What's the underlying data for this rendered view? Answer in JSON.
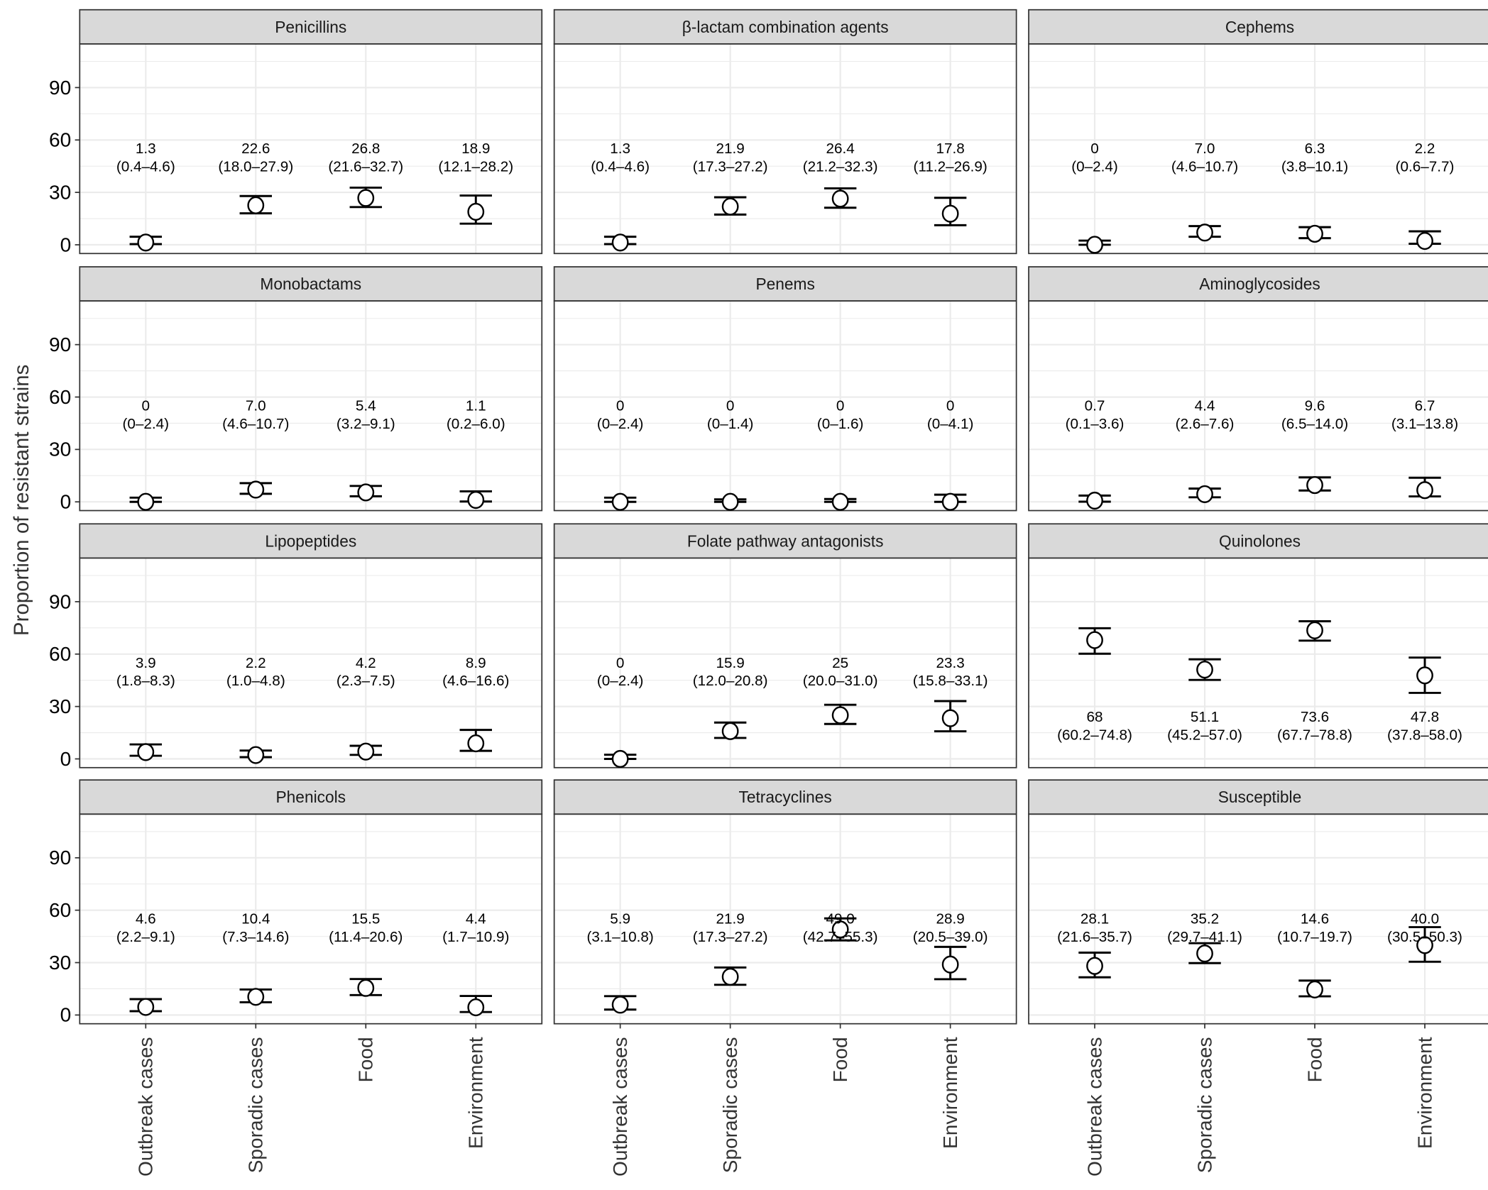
{
  "chart_data": {
    "type": "scatter",
    "subtype": "point-with-errorbars-faceted",
    "ylabel": "Proportion of resistant strains",
    "xlabel": "",
    "categories": [
      "Outbreak cases",
      "Sporadic cases",
      "Food",
      "Environment"
    ],
    "yticks": [
      0,
      30,
      60,
      90
    ],
    "ylim": [
      -5,
      115
    ],
    "grid": true,
    "panels": [
      {
        "title": "Penicillins",
        "est": [
          1.3,
          22.6,
          26.8,
          18.9
        ],
        "lo": [
          0.4,
          18.0,
          21.6,
          12.1
        ],
        "hi": [
          4.6,
          27.9,
          32.7,
          28.2
        ],
        "labels": [
          "1.3",
          "22.6",
          "26.8",
          "18.9"
        ],
        "ci": [
          "(0.4–4.6)",
          "(18.0–27.9)",
          "(21.6–32.7)",
          "(12.1–28.2)"
        ]
      },
      {
        "title": "β-lactam combination agents",
        "est": [
          1.3,
          21.9,
          26.4,
          17.8
        ],
        "lo": [
          0.4,
          17.3,
          21.2,
          11.2
        ],
        "hi": [
          4.6,
          27.2,
          32.3,
          26.9
        ],
        "labels": [
          "1.3",
          "21.9",
          "26.4",
          "17.8"
        ],
        "ci": [
          "(0.4–4.6)",
          "(17.3–27.2)",
          "(21.2–32.3)",
          "(11.2–26.9)"
        ]
      },
      {
        "title": "Cephems",
        "est": [
          0,
          7.0,
          6.3,
          2.2
        ],
        "lo": [
          0,
          4.6,
          3.8,
          0.6
        ],
        "hi": [
          2.4,
          10.7,
          10.1,
          7.7
        ],
        "labels": [
          "0",
          "7.0",
          "6.3",
          "2.2"
        ],
        "ci": [
          "(0–2.4)",
          "(4.6–10.7)",
          "(3.8–10.1)",
          "(0.6–7.7)"
        ]
      },
      {
        "title": "Monobactams",
        "est": [
          0,
          7.0,
          5.4,
          1.1
        ],
        "lo": [
          0,
          4.6,
          3.2,
          0.2
        ],
        "hi": [
          2.4,
          10.7,
          9.1,
          6.0
        ],
        "labels": [
          "0",
          "7.0",
          "5.4",
          "1.1"
        ],
        "ci": [
          "(0–2.4)",
          "(4.6–10.7)",
          "(3.2–9.1)",
          "(0.2–6.0)"
        ]
      },
      {
        "title": "Penems",
        "est": [
          0,
          0,
          0,
          0
        ],
        "lo": [
          0,
          0,
          0,
          0
        ],
        "hi": [
          2.4,
          1.4,
          1.6,
          4.1
        ],
        "labels": [
          "0",
          "0",
          "0",
          "0"
        ],
        "ci": [
          "(0–2.4)",
          "(0–1.4)",
          "(0–1.6)",
          "(0–4.1)"
        ]
      },
      {
        "title": "Aminoglycosides",
        "est": [
          0.7,
          4.4,
          9.6,
          6.7
        ],
        "lo": [
          0.1,
          2.6,
          6.5,
          3.1
        ],
        "hi": [
          3.6,
          7.6,
          14.0,
          13.8
        ],
        "labels": [
          "0.7",
          "4.4",
          "9.6",
          "6.7"
        ],
        "ci": [
          "(0.1–3.6)",
          "(2.6–7.6)",
          "(6.5–14.0)",
          "(3.1–13.8)"
        ]
      },
      {
        "title": "Lipopeptides",
        "est": [
          3.9,
          2.2,
          4.2,
          8.9
        ],
        "lo": [
          1.8,
          1.0,
          2.3,
          4.6
        ],
        "hi": [
          8.3,
          4.8,
          7.5,
          16.6
        ],
        "labels": [
          "3.9",
          "2.2",
          "4.2",
          "8.9"
        ],
        "ci": [
          "(1.8–8.3)",
          "(1.0–4.8)",
          "(2.3–7.5)",
          "(4.6–16.6)"
        ]
      },
      {
        "title": "Folate pathway antagonists",
        "est": [
          0,
          15.9,
          25,
          23.3
        ],
        "lo": [
          0,
          12.0,
          20.0,
          15.8
        ],
        "hi": [
          2.4,
          20.8,
          31.0,
          33.1
        ],
        "labels": [
          "0",
          "15.9",
          "25",
          "23.3"
        ],
        "ci": [
          "(0–2.4)",
          "(12.0–20.8)",
          "(20.0–31.0)",
          "(15.8–33.1)"
        ]
      },
      {
        "title": "Quinolones",
        "est": [
          68,
          51.1,
          73.6,
          47.8
        ],
        "lo": [
          60.2,
          45.2,
          67.7,
          37.8
        ],
        "hi": [
          74.8,
          57.0,
          78.8,
          58.0
        ],
        "labels": [
          "68",
          "51.1",
          "73.6",
          "47.8"
        ],
        "ci": [
          "(60.2–74.8)",
          "(45.2–57.0)",
          "(67.7–78.8)",
          "(37.8–58.0)"
        ],
        "label_position": "below"
      },
      {
        "title": "Phenicols",
        "est": [
          4.6,
          10.4,
          15.5,
          4.4
        ],
        "lo": [
          2.2,
          7.3,
          11.4,
          1.7
        ],
        "hi": [
          9.1,
          14.6,
          20.6,
          10.9
        ],
        "labels": [
          "4.6",
          "10.4",
          "15.5",
          "4.4"
        ],
        "ci": [
          "(2.2–9.1)",
          "(7.3–14.6)",
          "(11.4–20.6)",
          "(1.7–10.9)"
        ]
      },
      {
        "title": "Tetracyclines",
        "est": [
          5.9,
          21.9,
          49.0,
          28.9
        ],
        "lo": [
          3.1,
          17.3,
          42.7,
          20.5
        ],
        "hi": [
          10.8,
          27.2,
          55.3,
          39.0
        ],
        "labels": [
          "5.9",
          "21.9",
          "49.0",
          "28.9"
        ],
        "ci": [
          "(3.1–10.8)",
          "(17.3–27.2)",
          "(42.7–55.3)",
          "(20.5–39.0)"
        ]
      },
      {
        "title": "Susceptible",
        "est": [
          28.1,
          35.2,
          14.6,
          40.0
        ],
        "lo": [
          21.6,
          29.7,
          10.7,
          30.5
        ],
        "hi": [
          35.7,
          41.1,
          19.7,
          50.3
        ],
        "labels": [
          "28.1",
          "35.2",
          "14.6",
          "40.0"
        ],
        "ci": [
          "(21.6–35.7)",
          "(29.7–41.1)",
          "(10.7–19.7)",
          "(30.5–50.3)"
        ]
      }
    ]
  }
}
